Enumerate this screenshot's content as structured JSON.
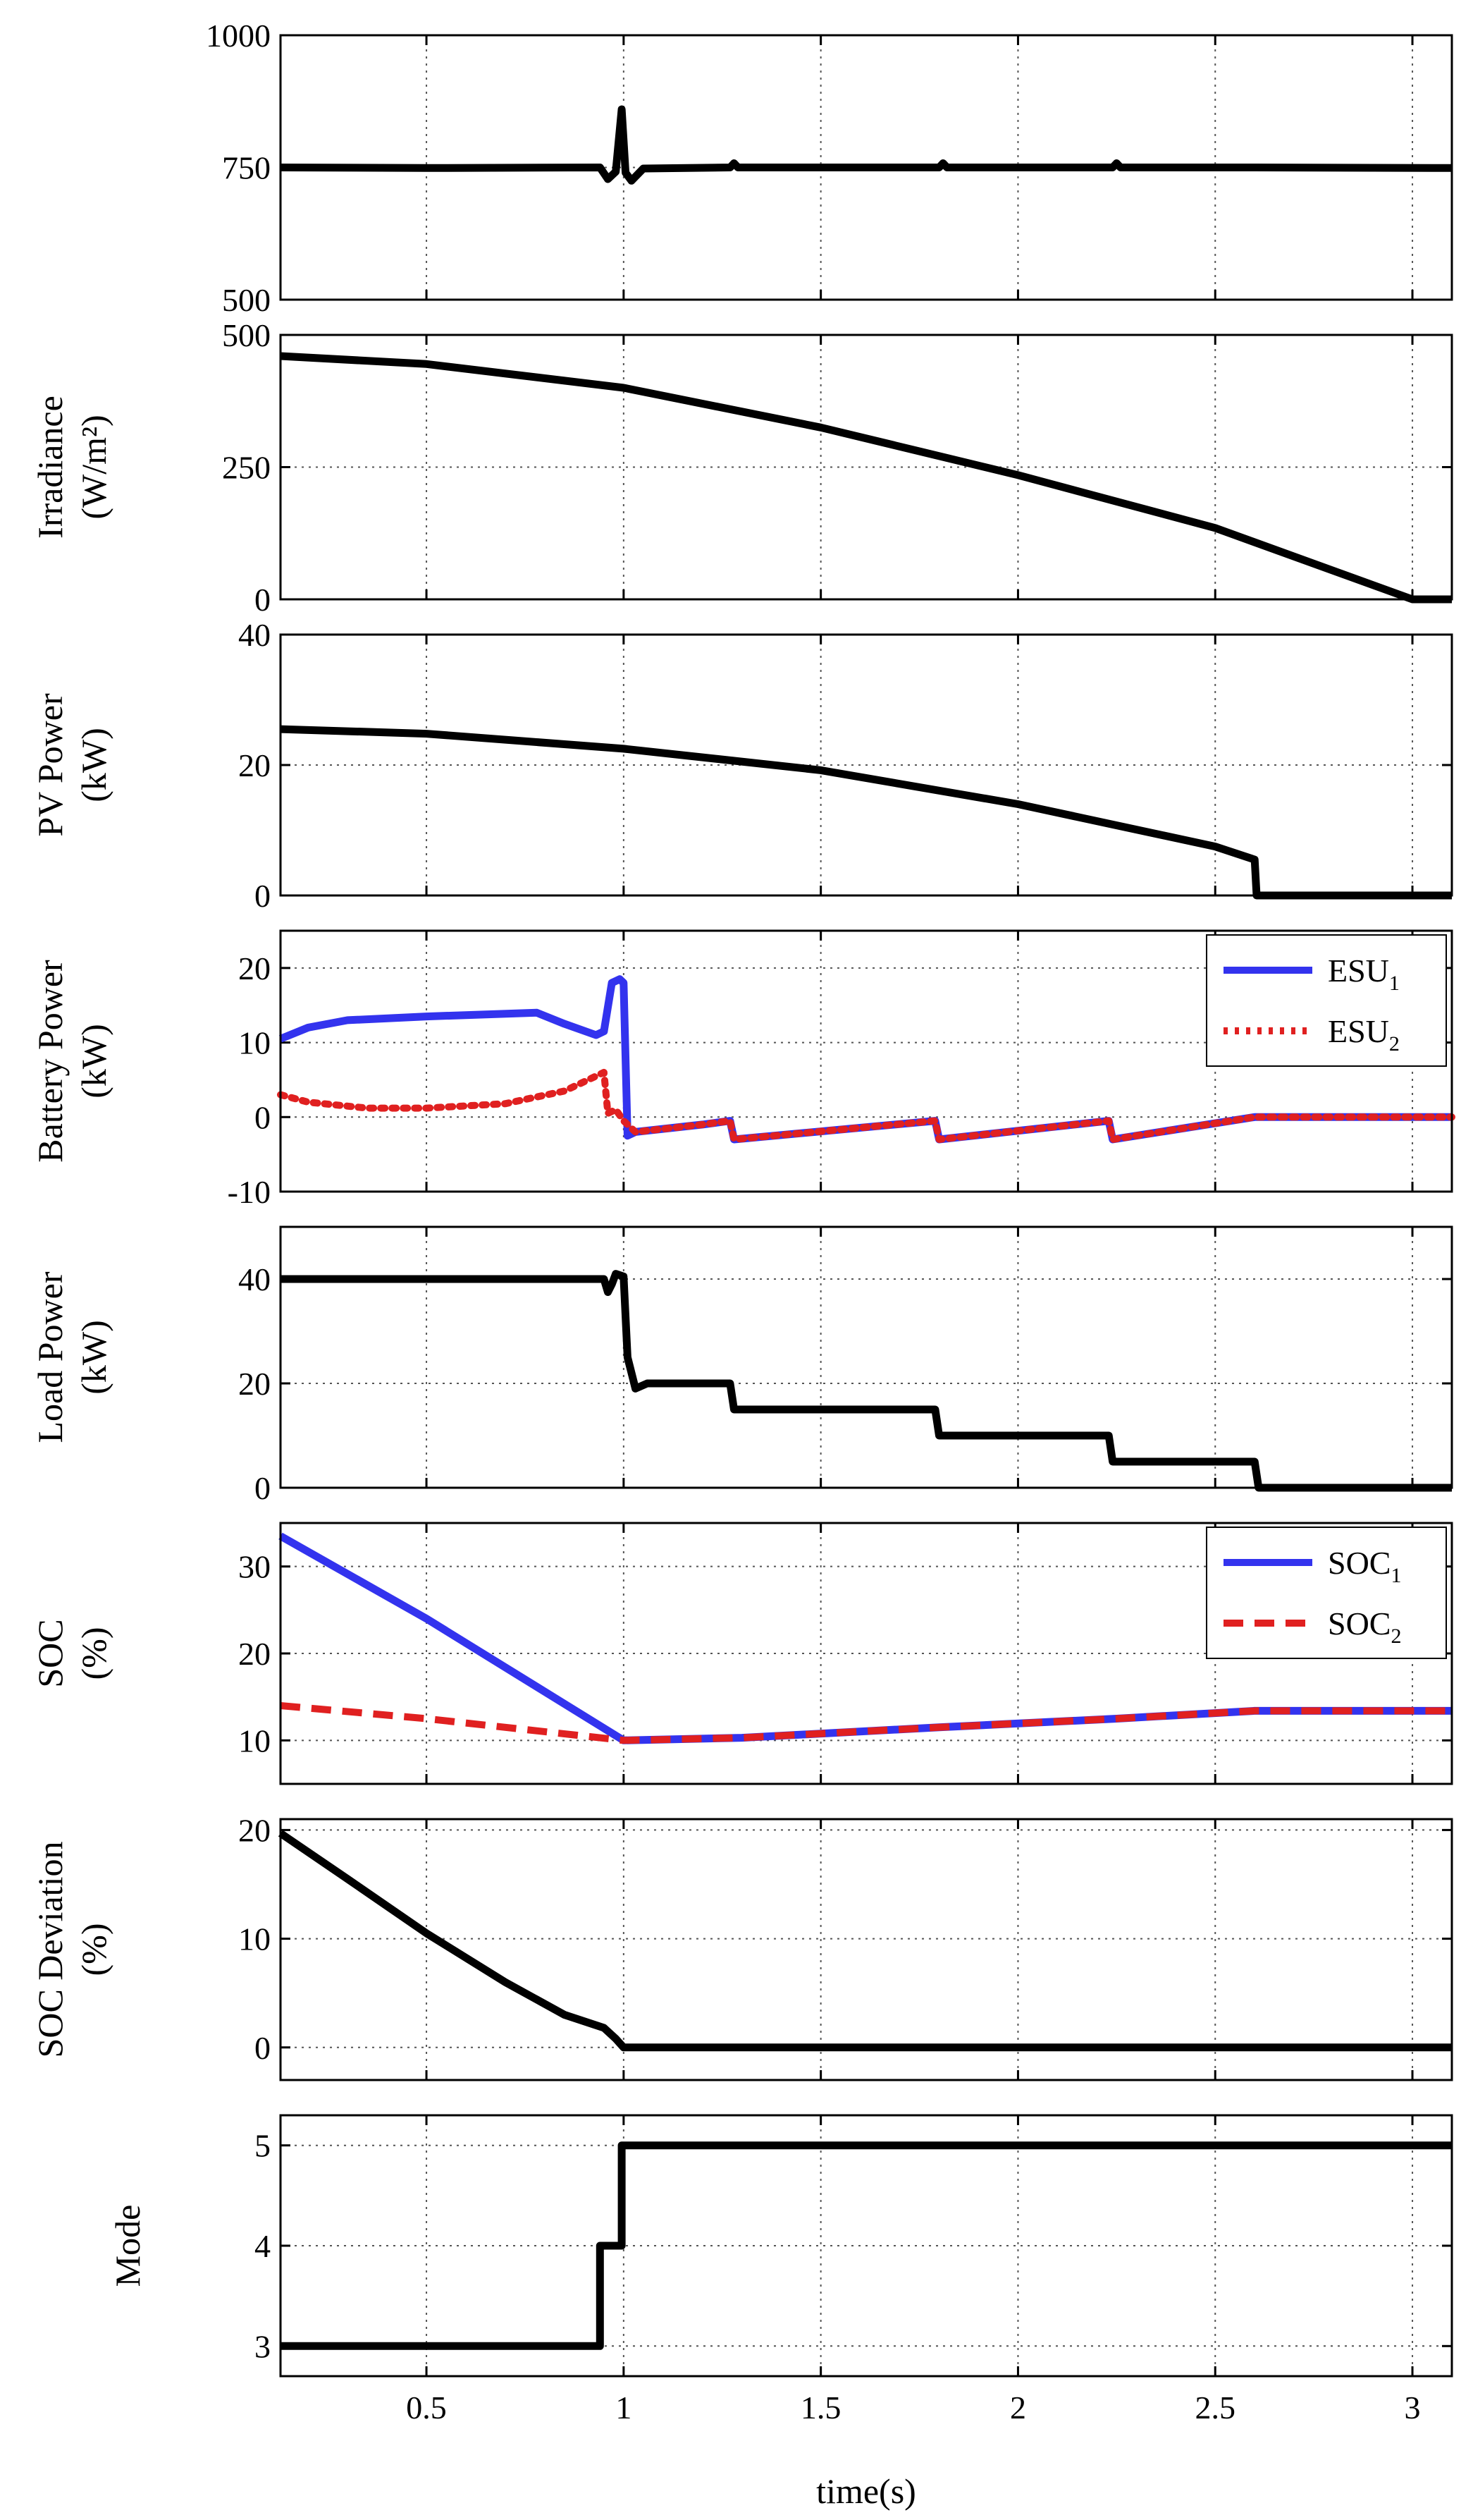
{
  "figure": {
    "xlabel": "time(s)",
    "xticks": [
      0.5,
      1,
      1.5,
      2,
      2.5,
      3
    ],
    "xlim": [
      0.13,
      3.1
    ]
  },
  "chart_data": [
    {
      "id": "p1",
      "type": "line",
      "title": "",
      "ylabel_lines": [],
      "ylim": [
        500,
        1000
      ],
      "yticks": [
        500,
        750,
        1000
      ],
      "grid": true,
      "series": [
        {
          "name": "",
          "color": "#000000",
          "style": "solid",
          "x": [
            0.13,
            0.5,
            0.94,
            0.96,
            0.98,
            0.995,
            1.005,
            1.02,
            1.05,
            1.27,
            1.28,
            1.29,
            1.8,
            1.81,
            1.82,
            2.24,
            2.25,
            2.26,
            2.6,
            3.1
          ],
          "y": [
            750,
            749,
            750,
            728,
            742,
            860,
            740,
            725,
            748,
            750,
            758,
            750,
            750,
            758,
            750,
            750,
            758,
            750,
            750,
            749
          ]
        }
      ]
    },
    {
      "id": "p2",
      "type": "line",
      "ylabel_lines": [
        "Irradiance",
        "(W/m²)"
      ],
      "ylim": [
        0,
        500
      ],
      "yticks": [
        0,
        250,
        500
      ],
      "grid": true,
      "series": [
        {
          "name": "",
          "color": "#000000",
          "style": "solid",
          "x": [
            0.13,
            0.5,
            1.0,
            1.5,
            2.0,
            2.5,
            3.0,
            3.1
          ],
          "y": [
            460,
            445,
            400,
            325,
            235,
            135,
            0,
            0
          ]
        }
      ]
    },
    {
      "id": "p3",
      "type": "line",
      "ylabel_lines": [
        "PV Power",
        "(kW)"
      ],
      "ylim": [
        0,
        40
      ],
      "yticks": [
        0,
        20,
        40
      ],
      "grid": true,
      "series": [
        {
          "name": "",
          "color": "#000000",
          "style": "solid",
          "x": [
            0.13,
            0.5,
            1.0,
            1.5,
            2.0,
            2.5,
            2.6,
            2.605,
            3.1
          ],
          "y": [
            25.5,
            24.8,
            22.5,
            19.2,
            14.0,
            7.5,
            5.5,
            0,
            0
          ]
        }
      ]
    },
    {
      "id": "p4",
      "type": "line",
      "ylabel_lines": [
        "Battery Power",
        "(kW)"
      ],
      "ylim": [
        -10,
        25
      ],
      "yticks": [
        -10,
        0,
        10,
        20
      ],
      "grid": true,
      "legend": {
        "position": "top-right"
      },
      "series": [
        {
          "name": "ESU",
          "sub": "1",
          "color": "#3333ee",
          "style": "solid",
          "x": [
            0.13,
            0.2,
            0.3,
            0.5,
            0.78,
            0.85,
            0.93,
            0.95,
            0.97,
            0.99,
            1.0,
            1.01,
            1.03,
            1.2,
            1.27,
            1.28,
            1.79,
            1.8,
            2.23,
            2.24,
            2.6,
            3.1
          ],
          "y": [
            10.5,
            12.0,
            13.0,
            13.5,
            14.0,
            12.5,
            11.0,
            11.5,
            18.0,
            18.5,
            18.0,
            -2.5,
            -2.0,
            -1.0,
            -0.5,
            -3.0,
            -0.5,
            -3.0,
            -0.5,
            -3.0,
            0,
            0
          ]
        },
        {
          "name": "ESU",
          "sub": "2",
          "color": "#e02020",
          "style": "dotted",
          "x": [
            0.13,
            0.2,
            0.35,
            0.5,
            0.7,
            0.85,
            0.95,
            0.96,
            0.98,
            1.0,
            1.03,
            1.2,
            1.27,
            1.28,
            1.79,
            1.8,
            2.23,
            2.24,
            2.6,
            3.1
          ],
          "y": [
            3.0,
            2.0,
            1.2,
            1.2,
            1.8,
            3.5,
            6.0,
            0.5,
            1.0,
            -0.5,
            -2.0,
            -1.0,
            -0.5,
            -3.0,
            -0.5,
            -3.0,
            -0.5,
            -3.0,
            0,
            0
          ]
        }
      ]
    },
    {
      "id": "p5",
      "type": "line",
      "ylabel_lines": [
        "Load Power",
        "(kW)"
      ],
      "ylim": [
        0,
        50
      ],
      "yticks": [
        0,
        20,
        40
      ],
      "grid": true,
      "series": [
        {
          "name": "",
          "color": "#000000",
          "style": "solid",
          "x": [
            0.13,
            0.95,
            0.96,
            0.97,
            0.98,
            1.0,
            1.01,
            1.03,
            1.06,
            1.27,
            1.28,
            1.79,
            1.8,
            2.23,
            2.24,
            2.6,
            2.61,
            3.1
          ],
          "y": [
            40,
            40,
            37.5,
            39,
            41,
            40.5,
            25,
            19,
            20,
            20,
            15,
            15,
            10,
            10,
            5,
            5,
            0,
            0
          ]
        }
      ]
    },
    {
      "id": "p6",
      "type": "line",
      "ylabel_lines": [
        "SOC",
        "(%)"
      ],
      "ylim": [
        5,
        35
      ],
      "yticks": [
        10,
        20,
        30
      ],
      "grid": true,
      "legend": {
        "position": "top-right"
      },
      "series": [
        {
          "name": "SOC",
          "sub": "1",
          "color": "#3333ee",
          "style": "solid",
          "x": [
            0.13,
            0.5,
            1.0,
            1.3,
            1.8,
            2.25,
            2.6,
            3.1
          ],
          "y": [
            33.5,
            24.0,
            10.0,
            10.3,
            11.5,
            12.5,
            13.4,
            13.4
          ]
        },
        {
          "name": "SOC",
          "sub": "2",
          "color": "#e02020",
          "style": "dashed",
          "x": [
            0.13,
            0.5,
            1.0,
            1.3,
            1.8,
            2.25,
            2.6,
            3.1
          ],
          "y": [
            14.0,
            12.5,
            10.0,
            10.3,
            11.5,
            12.5,
            13.4,
            13.4
          ]
        }
      ]
    },
    {
      "id": "p7",
      "type": "line",
      "ylabel_lines": [
        "SOC Deviation",
        "(%)"
      ],
      "ylim": [
        -3,
        21
      ],
      "yticks": [
        0,
        10,
        20
      ],
      "grid": true,
      "series": [
        {
          "name": "",
          "color": "#000000",
          "style": "solid",
          "x": [
            0.13,
            0.3,
            0.5,
            0.7,
            0.85,
            0.95,
            0.98,
            1.0,
            1.03,
            3.1
          ],
          "y": [
            19.7,
            15.5,
            10.5,
            6.0,
            3.0,
            1.8,
            0.8,
            0,
            0,
            0
          ]
        }
      ]
    },
    {
      "id": "p8",
      "type": "line",
      "ylabel_lines": [
        "Mode"
      ],
      "ylim": [
        2.7,
        5.3
      ],
      "yticks": [
        3,
        4,
        5
      ],
      "grid": true,
      "series": [
        {
          "name": "",
          "color": "#000000",
          "style": "solid",
          "x": [
            0.13,
            0.94,
            0.94,
            0.995,
            0.995,
            3.1
          ],
          "y": [
            3,
            3,
            4,
            4,
            5,
            5
          ]
        }
      ]
    }
  ]
}
